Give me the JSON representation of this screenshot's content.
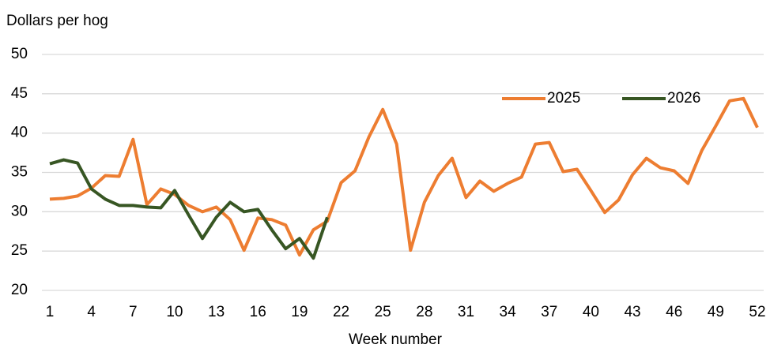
{
  "chart_data": {
    "type": "line",
    "y_label": "Dollars per hog",
    "x_label": "Week number",
    "x": [
      1,
      2,
      3,
      4,
      5,
      6,
      7,
      8,
      9,
      10,
      11,
      12,
      13,
      14,
      15,
      16,
      17,
      18,
      19,
      20,
      21,
      22,
      23,
      24,
      25,
      26,
      27,
      28,
      29,
      30,
      31,
      32,
      33,
      34,
      35,
      36,
      37,
      38,
      39,
      40,
      41,
      42,
      43,
      44,
      45,
      46,
      47,
      48,
      49,
      50,
      51,
      52
    ],
    "xlim": [
      1,
      52
    ],
    "xticks": [
      1,
      4,
      7,
      10,
      13,
      16,
      19,
      22,
      25,
      28,
      31,
      34,
      37,
      40,
      43,
      46,
      49,
      52
    ],
    "ylim": [
      20,
      50
    ],
    "yticks": [
      20,
      25,
      30,
      35,
      40,
      45,
      50
    ],
    "grid": true,
    "legend": "top-right",
    "series": [
      {
        "name": "2025",
        "color": "#ed7d31",
        "values": [
          31.6,
          31.7,
          32.0,
          33.0,
          34.6,
          34.5,
          39.2,
          30.9,
          32.9,
          32.2,
          30.8,
          30.0,
          30.6,
          29.0,
          25.1,
          29.2,
          29.0,
          28.3,
          24.5,
          27.7,
          28.8,
          33.7,
          35.2,
          39.5,
          43.0,
          38.6,
          25.1,
          31.2,
          34.6,
          36.8,
          31.8,
          33.9,
          32.6,
          33.6,
          34.4,
          38.6,
          38.8,
          35.1,
          35.4,
          32.7,
          29.9,
          31.5,
          34.7,
          36.8,
          35.6,
          35.2,
          33.6,
          37.8,
          40.9,
          44.1,
          44.4,
          40.7
        ]
      },
      {
        "name": "2026",
        "color": "#375623",
        "values": [
          36.1,
          36.6,
          36.2,
          32.9,
          31.6,
          30.8,
          30.8,
          30.6,
          30.5,
          32.7,
          29.6,
          26.6,
          29.3,
          31.2,
          30.0,
          30.3,
          27.7,
          25.3,
          26.6,
          24.1,
          29.3,
          null,
          null,
          null,
          null,
          null,
          null,
          null,
          null,
          null,
          null,
          null,
          null,
          null,
          null,
          null,
          null,
          null,
          null,
          null,
          null,
          null,
          null,
          null,
          null,
          null,
          null,
          null,
          null,
          null,
          null,
          null
        ]
      }
    ]
  }
}
